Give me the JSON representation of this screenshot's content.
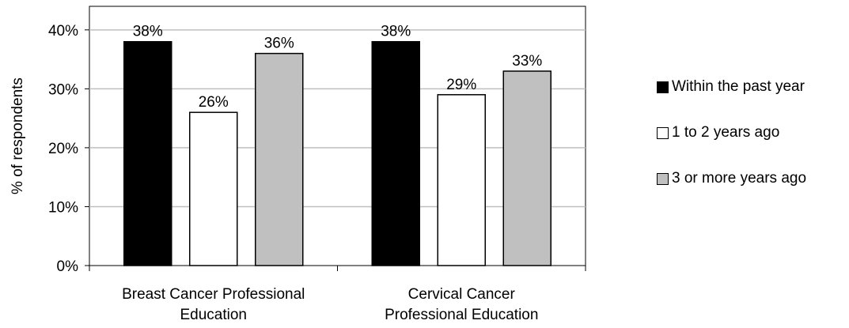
{
  "chart_data": {
    "type": "bar",
    "title": "",
    "xlabel": "",
    "ylabel": "% of respondents",
    "ylim": [
      0,
      0.44
    ],
    "yticks": [
      0,
      0.1,
      0.2,
      0.3,
      0.4
    ],
    "ytick_labels": [
      "0%",
      "10%",
      "20%",
      "30%",
      "40%"
    ],
    "grid": true,
    "legend_position": "right",
    "categories": [
      "Breast Cancer Professional Education",
      "Cervical Cancer Professional Education"
    ],
    "category_lines": [
      [
        "Breast Cancer Professional",
        "Education"
      ],
      [
        "Cervical Cancer",
        "Professional Education"
      ]
    ],
    "series": [
      {
        "name": "Within the past year",
        "color": "#000000",
        "values": [
          0.38,
          0.38
        ],
        "labels": [
          "38%",
          "38%"
        ]
      },
      {
        "name": "1 to 2 years ago",
        "color": "#ffffff",
        "values": [
          0.26,
          0.29
        ],
        "labels": [
          "26%",
          "29%"
        ]
      },
      {
        "name": "3 or more years ago",
        "color": "#c0c0c0",
        "values": [
          0.36,
          0.33
        ],
        "labels": [
          "36%",
          "33%"
        ]
      }
    ]
  }
}
